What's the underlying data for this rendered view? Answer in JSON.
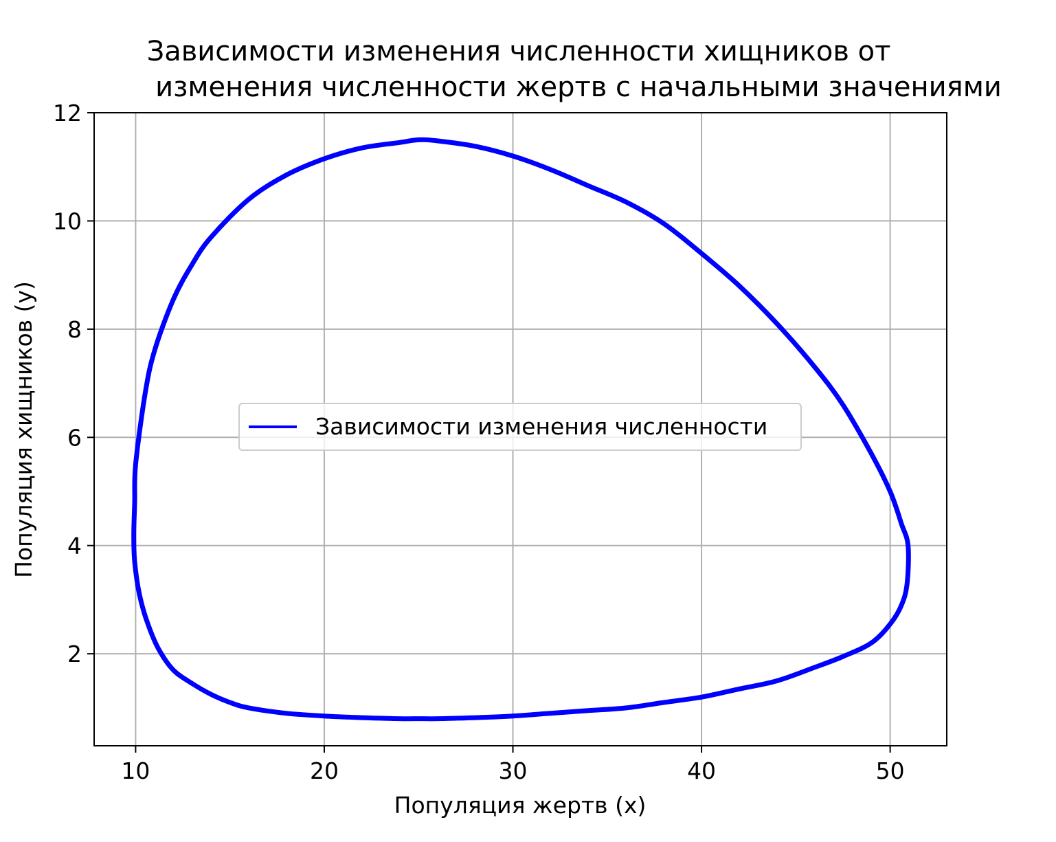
{
  "chart_data": {
    "type": "line",
    "title_lines": [
      "Зависимости изменения численности хищников от",
      "изменения численности жертв с начальными значениями"
    ],
    "xlabel": "Популяция жертв (x)",
    "ylabel": "Популяция хищников (y)",
    "xlim": [
      7.8,
      53.0
    ],
    "ylim": [
      0.3,
      12.0
    ],
    "xticks": [
      10,
      20,
      30,
      40,
      50
    ],
    "yticks": [
      2,
      4,
      6,
      8,
      10,
      12
    ],
    "xtick_labels": [
      "10",
      "20",
      "30",
      "40",
      "50"
    ],
    "ytick_labels": [
      "2",
      "4",
      "6",
      "8",
      "10",
      "12"
    ],
    "grid": true,
    "legend_position": "center",
    "series": [
      {
        "name": "Зависимости изменения численности",
        "color": "#0000ff",
        "closed": true,
        "x": [
          10.0,
          10.5,
          11.0,
          12.0,
          13.0,
          14.0,
          16.0,
          18.0,
          20.0,
          22.0,
          24.0,
          25.0,
          26.0,
          28.0,
          30.0,
          32.0,
          34.0,
          36.0,
          38.0,
          40.0,
          42.0,
          44.0,
          46.0,
          47.5,
          49.0,
          50.0,
          50.6,
          50.95,
          50.9,
          50.6,
          50.0,
          49.0,
          47.5,
          46.0,
          44.0,
          42.0,
          40.0,
          38.0,
          36.0,
          34.0,
          32.0,
          30.0,
          28.0,
          26.0,
          25.0,
          24.0,
          22.0,
          20.0,
          18.0,
          16.0,
          15.0,
          14.0,
          13.0,
          12.0,
          11.2,
          10.6,
          10.2,
          9.95,
          9.9,
          9.95
        ],
        "y": [
          5.5,
          6.8,
          7.6,
          8.55,
          9.2,
          9.7,
          10.4,
          10.85,
          11.15,
          11.35,
          11.45,
          11.5,
          11.48,
          11.38,
          11.2,
          10.95,
          10.65,
          10.35,
          9.95,
          9.4,
          8.8,
          8.1,
          7.3,
          6.6,
          5.7,
          5.0,
          4.4,
          4.0,
          3.3,
          2.9,
          2.55,
          2.2,
          1.95,
          1.75,
          1.5,
          1.35,
          1.2,
          1.1,
          1.0,
          0.95,
          0.9,
          0.85,
          0.82,
          0.8,
          0.8,
          0.8,
          0.82,
          0.85,
          0.9,
          1.0,
          1.1,
          1.25,
          1.45,
          1.7,
          2.1,
          2.6,
          3.1,
          3.7,
          4.2,
          4.8
        ]
      }
    ]
  }
}
